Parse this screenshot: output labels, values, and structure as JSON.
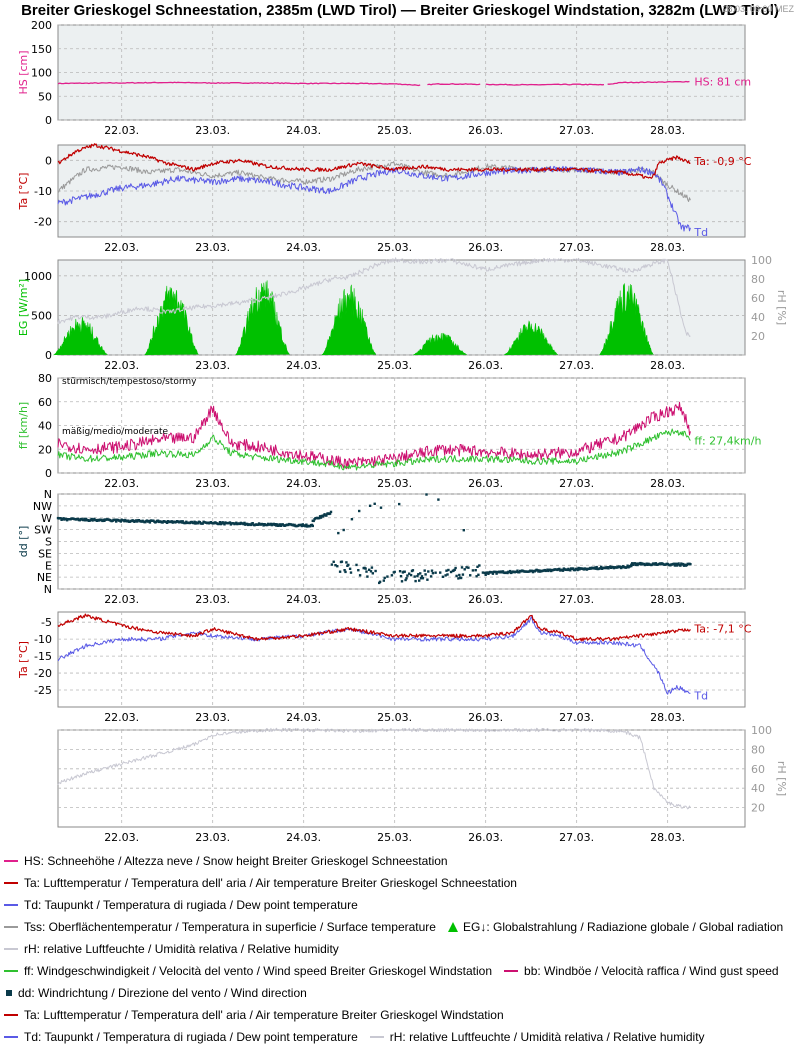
{
  "title": "Breiter Grieskogel Schneestation, 2385m (LWD Tirol) — Breiter Grieskogel Windstation, 3282m (LWD Tirol)",
  "timestamp": "28.03. 09:00 MEZ",
  "x_ticks": [
    "22.03.",
    "23.03.",
    "24.03.",
    "25.03.",
    "26.03.",
    "27.03.",
    "28.03."
  ],
  "colors": {
    "hs": "#e0208c",
    "ta": "#c00000",
    "td": "#5a5ae6",
    "tss": "#9a9a9a",
    "eg": "#00c000",
    "rh": "#c8c8d2",
    "ff": "#30c030",
    "bb": "#cc1070",
    "dd": "#0a3a4a"
  },
  "chart_data": [
    {
      "type": "line",
      "id": "hs",
      "ylabel": "HS [cm]",
      "ylim": [
        0,
        200
      ],
      "yticks": [
        0,
        50,
        100,
        150,
        200
      ],
      "grid": true,
      "series": [
        {
          "name": "HS",
          "x": [
            21.3,
            22.0,
            22.5,
            23.0,
            23.5,
            24.0,
            24.5,
            25.0,
            25.3,
            25.4,
            25.5,
            26.0,
            26.5,
            27.0,
            27.3,
            27.5,
            28.0,
            28.25
          ],
          "values": [
            77,
            78,
            79,
            78,
            78,
            77,
            77,
            76,
            73,
            75,
            76,
            75,
            74,
            75,
            74,
            79,
            80,
            81
          ]
        }
      ],
      "last_label": "HS: 81 cm"
    },
    {
      "type": "line",
      "id": "ta1",
      "ylabel": "Ta [°C]",
      "ylim": [
        -25,
        5
      ],
      "yticks": [
        -20,
        -10,
        0
      ],
      "grid": true,
      "series": [
        {
          "name": "Ta",
          "x": [
            21.3,
            21.5,
            21.7,
            22.0,
            22.3,
            22.5,
            22.8,
            23.0,
            23.3,
            23.6,
            24.0,
            24.3,
            24.6,
            25.0,
            25.3,
            25.6,
            26.0,
            26.5,
            27.0,
            27.5,
            27.7,
            27.8,
            27.85,
            27.9,
            28.0,
            28.1,
            28.25
          ],
          "values": [
            -1,
            3,
            5,
            3,
            1,
            -1,
            -3,
            -1,
            0,
            -2,
            -3,
            -3,
            -1,
            -3,
            -2,
            -3,
            -3,
            -3,
            -3,
            -4,
            -5,
            -6,
            -5,
            -1,
            0,
            1,
            -0.9
          ]
        },
        {
          "name": "Tss",
          "x": [
            21.3,
            21.6,
            22.0,
            22.3,
            22.6,
            23.0,
            23.3,
            23.6,
            24.0,
            24.3,
            24.6,
            25.0,
            25.3,
            25.6,
            26.0,
            26.5,
            27.0,
            27.5,
            27.7,
            27.85,
            27.95,
            28.05,
            28.25
          ],
          "values": [
            -10,
            -3,
            -2,
            -4,
            -3,
            -5,
            -4,
            -6,
            -7,
            -6,
            -3,
            -1,
            -4,
            -5,
            -2,
            -3,
            -3,
            -4,
            -3,
            -4,
            -7,
            -9,
            -13
          ]
        },
        {
          "name": "Td",
          "x": [
            21.3,
            21.6,
            22.0,
            22.3,
            22.6,
            23.0,
            23.3,
            23.6,
            24.0,
            24.3,
            24.6,
            25.0,
            25.3,
            25.6,
            26.0,
            26.5,
            27.0,
            27.5,
            27.7,
            27.85,
            27.95,
            28.05,
            28.15,
            28.25
          ],
          "values": [
            -14,
            -12,
            -9,
            -8,
            -6,
            -7,
            -6,
            -7,
            -9,
            -10,
            -6,
            -3,
            -5,
            -6,
            -4,
            -3,
            -3,
            -4,
            -3,
            -4,
            -8,
            -15,
            -22,
            -22
          ]
        }
      ],
      "last_labels": [
        "Ta: -0,9 °C",
        "Td"
      ]
    },
    {
      "type": "area",
      "id": "eg",
      "ylabel": "EG [W/m²]",
      "ylim": [
        0,
        1200
      ],
      "yticks": [
        0,
        500,
        1000
      ],
      "y2label": "rH [%]",
      "y2lim": [
        0,
        100
      ],
      "y2ticks": [
        20,
        40,
        60,
        80,
        100
      ],
      "grid": true,
      "series": [
        {
          "name": "EG",
          "peaks": [
            {
              "day": 21.55,
              "value": 500
            },
            {
              "day": 22.55,
              "value": 950
            },
            {
              "day": 23.55,
              "value": 1000
            },
            {
              "day": 24.5,
              "value": 900
            },
            {
              "day": 25.5,
              "value": 300
            },
            {
              "day": 26.5,
              "value": 450
            },
            {
              "day": 27.55,
              "value": 950
            }
          ]
        },
        {
          "name": "rH",
          "x": [
            21.3,
            21.5,
            21.8,
            22.2,
            22.5,
            22.8,
            23.0,
            23.3,
            23.6,
            24.0,
            24.3,
            24.5,
            24.8,
            25.0,
            25.3,
            25.6,
            26.0,
            26.3,
            26.6,
            27.0,
            27.4,
            27.6,
            27.8,
            28.0,
            28.2,
            28.25
          ],
          "values": [
            35,
            40,
            40,
            50,
            45,
            50,
            52,
            55,
            60,
            70,
            80,
            82,
            95,
            100,
            98,
            100,
            90,
            95,
            100,
            100,
            92,
            88,
            95,
            100,
            22,
            20
          ]
        }
      ]
    },
    {
      "type": "line",
      "id": "wind",
      "ylabel": "ff [km/h]",
      "ylim": [
        0,
        80
      ],
      "yticks": [
        0,
        20,
        40,
        60,
        80
      ],
      "grid": true,
      "series": [
        {
          "name": "ff",
          "x": [
            21.3,
            21.6,
            22.0,
            22.4,
            22.8,
            23.0,
            23.2,
            23.5,
            24.0,
            24.5,
            25.0,
            25.5,
            26.0,
            26.5,
            27.0,
            27.5,
            27.8,
            28.0,
            28.15,
            28.25
          ],
          "values": [
            15,
            12,
            13,
            17,
            15,
            30,
            17,
            13,
            10,
            5,
            8,
            12,
            12,
            10,
            10,
            18,
            28,
            34,
            35,
            27.4
          ]
        },
        {
          "name": "bb",
          "x": [
            21.3,
            21.6,
            22.0,
            22.4,
            22.8,
            23.0,
            23.2,
            23.5,
            24.0,
            24.5,
            25.0,
            25.5,
            26.0,
            26.5,
            27.0,
            27.5,
            27.8,
            28.0,
            28.15,
            28.25
          ],
          "values": [
            25,
            20,
            22,
            28,
            30,
            55,
            25,
            22,
            15,
            8,
            12,
            20,
            18,
            15,
            18,
            30,
            45,
            52,
            55,
            35
          ]
        }
      ],
      "annotations": [
        "stürmisch/tempestoso/stormy",
        "mäßig/medio/moderate"
      ],
      "last_label": "ff: 27,4km/h"
    },
    {
      "type": "scatter",
      "id": "dd",
      "ylabel": "dd [°]",
      "ylim": [
        0,
        360
      ],
      "ytick_labels": [
        "N",
        "NE",
        "E",
        "SE",
        "S",
        "SW",
        "W",
        "NW",
        "N"
      ],
      "grid": true,
      "series": [
        {
          "name": "dd",
          "segments": [
            {
              "from": 21.3,
              "to": 24.1,
              "start": 265,
              "end": 240
            },
            {
              "from": 24.1,
              "to": 24.3,
              "start": 260,
              "end": 290
            },
            {
              "from": 24.3,
              "to": 24.8,
              "start": 90,
              "end": 60
            },
            {
              "from": 24.8,
              "to": 26.0,
              "start": 40,
              "end": 70
            },
            {
              "from": 26.0,
              "to": 27.6,
              "start": 60,
              "end": 85
            },
            {
              "from": 27.6,
              "to": 28.25,
              "start": 95,
              "end": 92
            }
          ]
        }
      ]
    },
    {
      "type": "line",
      "id": "ta2",
      "ylabel": "Ta [°C]",
      "ylim": [
        -30,
        -2
      ],
      "yticks": [
        -25,
        -20,
        -15,
        -10,
        -5
      ],
      "grid": true,
      "series": [
        {
          "name": "Ta",
          "x": [
            21.3,
            21.6,
            22.0,
            22.4,
            22.8,
            23.0,
            23.5,
            24.0,
            24.5,
            25.0,
            25.5,
            26.0,
            26.3,
            26.5,
            26.6,
            26.8,
            27.0,
            27.4,
            27.7,
            28.0,
            28.25
          ],
          "values": [
            -6,
            -3,
            -6,
            -8,
            -9,
            -7,
            -10,
            -9,
            -7,
            -9,
            -9,
            -9,
            -8,
            -3,
            -7,
            -8,
            -10,
            -10,
            -9,
            -8,
            -7.1
          ]
        },
        {
          "name": "Td",
          "x": [
            21.3,
            21.6,
            22.0,
            22.4,
            22.8,
            23.0,
            23.5,
            24.0,
            24.5,
            25.0,
            25.5,
            26.0,
            26.3,
            26.5,
            26.6,
            26.8,
            27.0,
            27.4,
            27.7,
            27.9,
            28.0,
            28.1,
            28.25
          ],
          "values": [
            -16,
            -12,
            -10,
            -10,
            -8,
            -9,
            -10,
            -9,
            -7,
            -10,
            -10,
            -10,
            -9,
            -4,
            -8,
            -9,
            -11,
            -11,
            -12,
            -20,
            -26,
            -24,
            -26
          ]
        }
      ],
      "last_labels": [
        "Ta: -7,1 °C",
        "Td"
      ]
    },
    {
      "type": "line",
      "id": "rh2",
      "y2label": "rH [%]",
      "y2lim": [
        0,
        100
      ],
      "y2ticks": [
        20,
        40,
        60,
        80,
        100
      ],
      "grid": true,
      "series": [
        {
          "name": "rH",
          "x": [
            21.3,
            21.6,
            22.0,
            22.4,
            22.8,
            23.0,
            23.3,
            23.6,
            24.0,
            24.5,
            25.0,
            26.0,
            27.0,
            27.5,
            27.7,
            27.85,
            28.0,
            28.1,
            28.25
          ],
          "values": [
            45,
            55,
            65,
            75,
            85,
            95,
            98,
            100,
            100,
            99,
            100,
            100,
            100,
            99,
            92,
            40,
            25,
            22,
            20
          ]
        }
      ]
    }
  ],
  "legend": [
    {
      "items": [
        {
          "marker": "line",
          "color": "hs",
          "text": "HS: Schneehöhe / Altezza neve / Snow height  Breiter Grieskogel Schneestation"
        }
      ]
    },
    {
      "items": [
        {
          "marker": "line",
          "color": "ta",
          "text": "Ta: Lufttemperatur / Temperatura dell' aria / Air temperature  Breiter Grieskogel Schneestation"
        }
      ]
    },
    {
      "items": [
        {
          "marker": "line",
          "color": "td",
          "text": "Td: Taupunkt / Temperatura di rugiada / Dew point temperature"
        }
      ]
    },
    {
      "items": [
        {
          "marker": "line",
          "color": "tss",
          "text": "Tss: Oberflächentemperatur / Temperatura in superficie / Surface temperature"
        },
        {
          "marker": "triangle",
          "color": "eg",
          "text": "EG↓: Globalstrahlung / Radiazione globale / Global radiation"
        }
      ]
    },
    {
      "items": [
        {
          "marker": "line",
          "color": "rh",
          "text": "rH: relative Luftfeuchte / Umidità relativa / Relative humidity"
        }
      ]
    },
    {
      "items": [
        {
          "marker": "line",
          "color": "ff",
          "text": "ff: Windgeschwindigkeit / Velocità del vento / Wind speed  Breiter Grieskogel Windstation"
        },
        {
          "marker": "line",
          "color": "bb",
          "text": "bb: Windböe / Velocità raffica / Wind gust speed"
        }
      ]
    },
    {
      "items": [
        {
          "marker": "square",
          "color": "dd",
          "text": "dd: Windrichtung / Direzione del vento / Wind direction"
        }
      ]
    },
    {
      "items": [
        {
          "marker": "line",
          "color": "ta",
          "text": "Ta: Lufttemperatur / Temperatura dell' aria / Air temperature  Breiter Grieskogel Windstation"
        }
      ]
    },
    {
      "items": [
        {
          "marker": "line",
          "color": "td",
          "text": "Td: Taupunkt / Temperatura di rugiada / Dew point temperature"
        },
        {
          "marker": "line",
          "color": "rh",
          "text": "rH: relative Luftfeuchte / Umidità relativa / Relative humidity"
        }
      ]
    }
  ]
}
